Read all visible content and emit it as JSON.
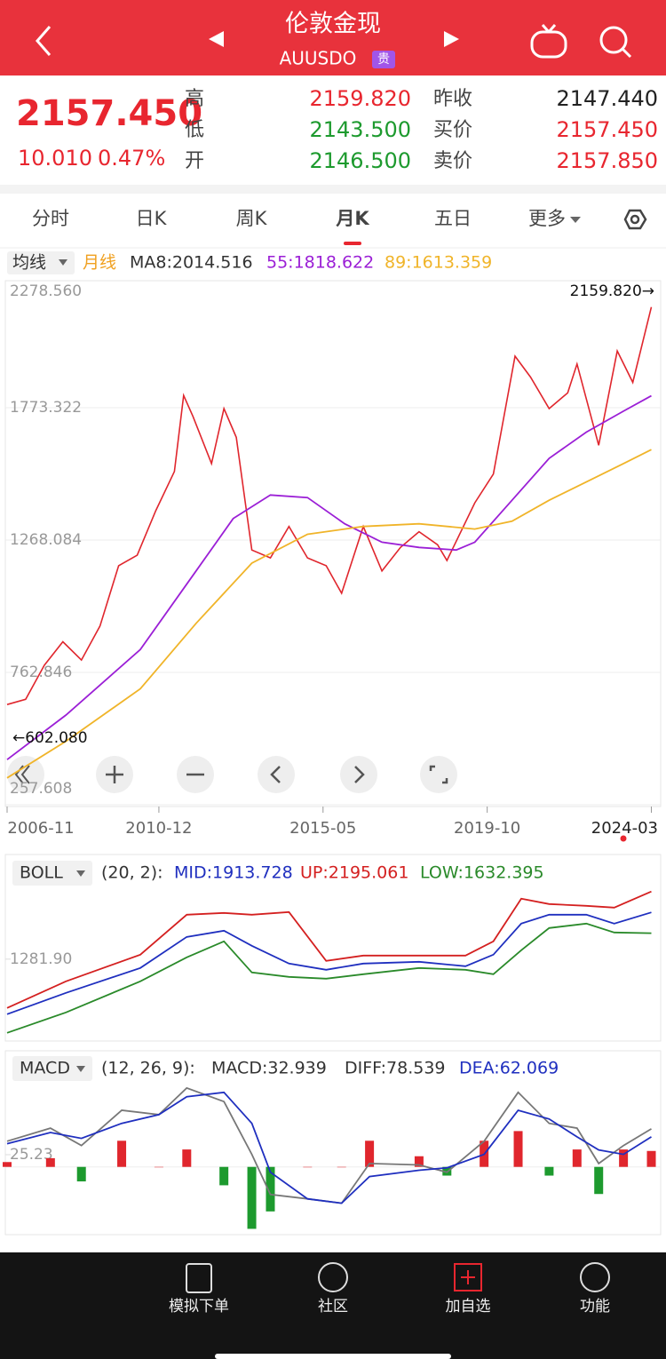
{
  "header": {
    "title": "伦敦金现",
    "code": "AUUSDO",
    "badge": "贵"
  },
  "quote": {
    "price": "2157.450",
    "change": "10.010",
    "change_pct": "0.47%",
    "left": [
      {
        "label": "高",
        "value": "2159.820",
        "color": "#e8262f"
      },
      {
        "label": "低",
        "value": "2143.500",
        "color": "#1d9a2e"
      },
      {
        "label": "开",
        "value": "2146.500",
        "color": "#1d9a2e"
      }
    ],
    "right": [
      {
        "label": "昨收",
        "value": "2147.440",
        "color": "#222222"
      },
      {
        "label": "买价",
        "value": "2157.450",
        "color": "#e8262f"
      },
      {
        "label": "卖价",
        "value": "2157.850",
        "color": "#e8262f"
      }
    ]
  },
  "tabs": [
    "分时",
    "日K",
    "周K",
    "月K",
    "五日",
    "更多"
  ],
  "nav": [
    "模拟下单",
    "社区",
    "加自选",
    "功能"
  ],
  "chart_data": [
    {
      "type": "line",
      "indicator": "均线",
      "period": "月线",
      "legend": [
        {
          "text": "MA8:2014.516",
          "color": "#333333"
        },
        {
          "text": "55:1818.622",
          "color": "#9b1fd6"
        },
        {
          "text": "89:1613.359",
          "color": "#f0b429"
        }
      ],
      "annotations": [
        "2159.820→",
        "←602.080"
      ],
      "ylim": [
        257.608,
        2278.56
      ],
      "yticks": [
        {
          "value": 2278.56,
          "label": "2278.560"
        },
        1773.322,
        1268.084,
        762.846,
        257.608
      ],
      "xticks": [
        "2006-11",
        "2010-12",
        "2015-05",
        "2019-10",
        "2024-03"
      ],
      "grid": true,
      "series": [
        {
          "color": "#e0262d",
          "x": [
            "2006-11",
            "2007-05",
            "2007-11",
            "2008-05",
            "2008-11",
            "2009-05",
            "2009-11",
            "2010-05",
            "2010-11",
            "2011-05",
            "2011-08",
            "2011-11",
            "2012-05",
            "2012-09",
            "2013-01",
            "2013-06",
            "2013-12",
            "2014-06",
            "2014-12",
            "2015-06",
            "2015-11",
            "2016-06",
            "2016-12",
            "2017-06",
            "2017-12",
            "2018-06",
            "2018-09",
            "2019-06",
            "2019-12",
            "2020-07",
            "2020-12",
            "2021-06",
            "2021-12",
            "2022-03",
            "2022-10",
            "2023-04",
            "2023-09",
            "2024-03"
          ],
          "values": [
            640,
            660,
            790,
            880,
            810,
            940,
            1170,
            1210,
            1380,
            1530,
            1820,
            1740,
            1560,
            1770,
            1660,
            1230,
            1200,
            1320,
            1200,
            1170,
            1065,
            1320,
            1150,
            1240,
            1300,
            1250,
            1190,
            1410,
            1520,
            1970,
            1890,
            1770,
            1830,
            1940,
            1630,
            1990,
            1870,
            2157.45
          ]
        },
        {
          "color": "#9b1fd6",
          "x": [
            "2006-11",
            "2008-06",
            "2010-06",
            "2011-12",
            "2012-12",
            "2013-12",
            "2014-12",
            "2015-12",
            "2016-12",
            "2017-12",
            "2018-12",
            "2019-06",
            "2020-06",
            "2021-06",
            "2022-06",
            "2023-06",
            "2024-03"
          ],
          "values": [
            430,
            600,
            850,
            1150,
            1350,
            1440,
            1430,
            1330,
            1260,
            1240,
            1230,
            1260,
            1420,
            1580,
            1680,
            1760,
            1818.622
          ]
        },
        {
          "color": "#f0b429",
          "x": [
            "2006-11",
            "2008-06",
            "2010-06",
            "2011-12",
            "2013-06",
            "2014-12",
            "2016-06",
            "2017-12",
            "2019-06",
            "2020-06",
            "2021-06",
            "2022-06",
            "2023-06",
            "2024-03"
          ],
          "values": [
            360,
            500,
            700,
            950,
            1180,
            1290,
            1320,
            1330,
            1310,
            1340,
            1420,
            1490,
            1560,
            1613.359
          ]
        }
      ]
    },
    {
      "type": "line",
      "indicator": "BOLL",
      "params": "(20, 2):",
      "legend": [
        {
          "text": "MID:1913.728",
          "color": "#1f2fbf"
        },
        {
          "text": "UP:2195.061",
          "color": "#d42020"
        },
        {
          "text": "LOW:1632.395",
          "color": "#2a8a2a"
        }
      ],
      "ylim": [
        200,
        2240
      ],
      "yticks": [
        {
          "value": 1281.9,
          "label": "1281.90"
        }
      ],
      "series": [
        {
          "color": "#d42020",
          "x": [
            "2006-11",
            "2008-06",
            "2010-06",
            "2011-09",
            "2012-09",
            "2013-06",
            "2014-06",
            "2015-06",
            "2016-06",
            "2017-12",
            "2019-03",
            "2019-12",
            "2020-09",
            "2021-06",
            "2022-06",
            "2023-03",
            "2024-03"
          ],
          "values": [
            622,
            982,
            1342,
            1882,
            1906,
            1882,
            1918,
            1258,
            1330,
            1330,
            1330,
            1522,
            2098,
            2026,
            2002,
            1978,
            2195.061
          ]
        },
        {
          "color": "#1f2fbf",
          "x": [
            "2006-11",
            "2008-06",
            "2010-06",
            "2011-09",
            "2012-09",
            "2013-06",
            "2014-06",
            "2015-06",
            "2016-06",
            "2017-12",
            "2019-03",
            "2019-12",
            "2020-09",
            "2021-06",
            "2022-06",
            "2023-03",
            "2024-03"
          ],
          "values": [
            538,
            826,
            1162,
            1582,
            1666,
            1462,
            1222,
            1138,
            1222,
            1246,
            1186,
            1342,
            1762,
            1882,
            1882,
            1762,
            1913.728
          ]
        },
        {
          "color": "#2a8a2a",
          "x": [
            "2006-11",
            "2008-06",
            "2010-06",
            "2011-09",
            "2012-09",
            "2013-06",
            "2014-06",
            "2015-06",
            "2016-06",
            "2017-12",
            "2019-03",
            "2019-12",
            "2020-09",
            "2021-06",
            "2022-06",
            "2023-03",
            "2024-03"
          ],
          "values": [
            286,
            562,
            982,
            1306,
            1522,
            1102,
            1042,
            1018,
            1078,
            1162,
            1138,
            1078,
            1402,
            1702,
            1762,
            1642,
            1632.395
          ]
        }
      ]
    },
    {
      "type": "line",
      "indicator": "MACD",
      "params": "(12, 26, 9):",
      "legend": [
        {
          "text": "MACD:32.939",
          "color": "#333333"
        },
        {
          "text": "DIFF:78.539",
          "color": "#333333"
        },
        {
          "text": "DEA:62.069",
          "color": "#1f2fbf"
        }
      ],
      "ylim": [
        -140,
        172
      ],
      "yticks": [
        25.23
      ],
      "series": [
        {
          "color": "#777777",
          "x": [
            "2006-11",
            "2008-01",
            "2008-11",
            "2009-12",
            "2010-12",
            "2011-09",
            "2012-09",
            "2013-06",
            "2013-12",
            "2014-12",
            "2015-11",
            "2016-08",
            "2017-12",
            "2018-09",
            "2019-09",
            "2020-08",
            "2021-06",
            "2022-03",
            "2022-10",
            "2023-06",
            "2024-03"
          ],
          "values": [
            53,
            80,
            44,
            117,
            108,
            163,
            135,
            26,
            -57,
            -66,
            -75,
            7,
            4,
            -11,
            53,
            154,
            90,
            80,
            7,
            44,
            78.539
          ]
        },
        {
          "color": "#1f2fbf",
          "x": [
            "2006-11",
            "2008-01",
            "2008-11",
            "2009-12",
            "2010-12",
            "2011-09",
            "2012-09",
            "2013-06",
            "2013-12",
            "2014-12",
            "2015-11",
            "2016-08",
            "2017-12",
            "2018-09",
            "2019-09",
            "2020-08",
            "2021-06",
            "2022-03",
            "2022-10",
            "2023-06",
            "2024-03"
          ],
          "values": [
            48,
            71,
            59,
            90,
            108,
            145,
            154,
            90,
            -11,
            -66,
            -75,
            -20,
            -7,
            -2,
            26,
            117,
            99,
            62,
            35,
            26,
            62.069
          ]
        }
      ],
      "histogram": {
        "up_color": "#e0262d",
        "down_color": "#1d9a2e",
        "x": [
          "2006-11",
          "2008-01",
          "2008-11",
          "2009-12",
          "2010-12",
          "2011-09",
          "2012-09",
          "2013-06",
          "2013-12",
          "2014-12",
          "2015-11",
          "2016-08",
          "2017-12",
          "2018-09",
          "2019-09",
          "2020-08",
          "2021-06",
          "2022-03",
          "2022-10",
          "2023-06",
          "2024-03"
        ],
        "values": [
          10,
          18,
          -30,
          54,
          0,
          36,
          -38,
          -128,
          -92,
          0,
          0,
          54,
          22,
          -18,
          54,
          74,
          -18,
          36,
          -56,
          36,
          32.939
        ]
      }
    }
  ]
}
